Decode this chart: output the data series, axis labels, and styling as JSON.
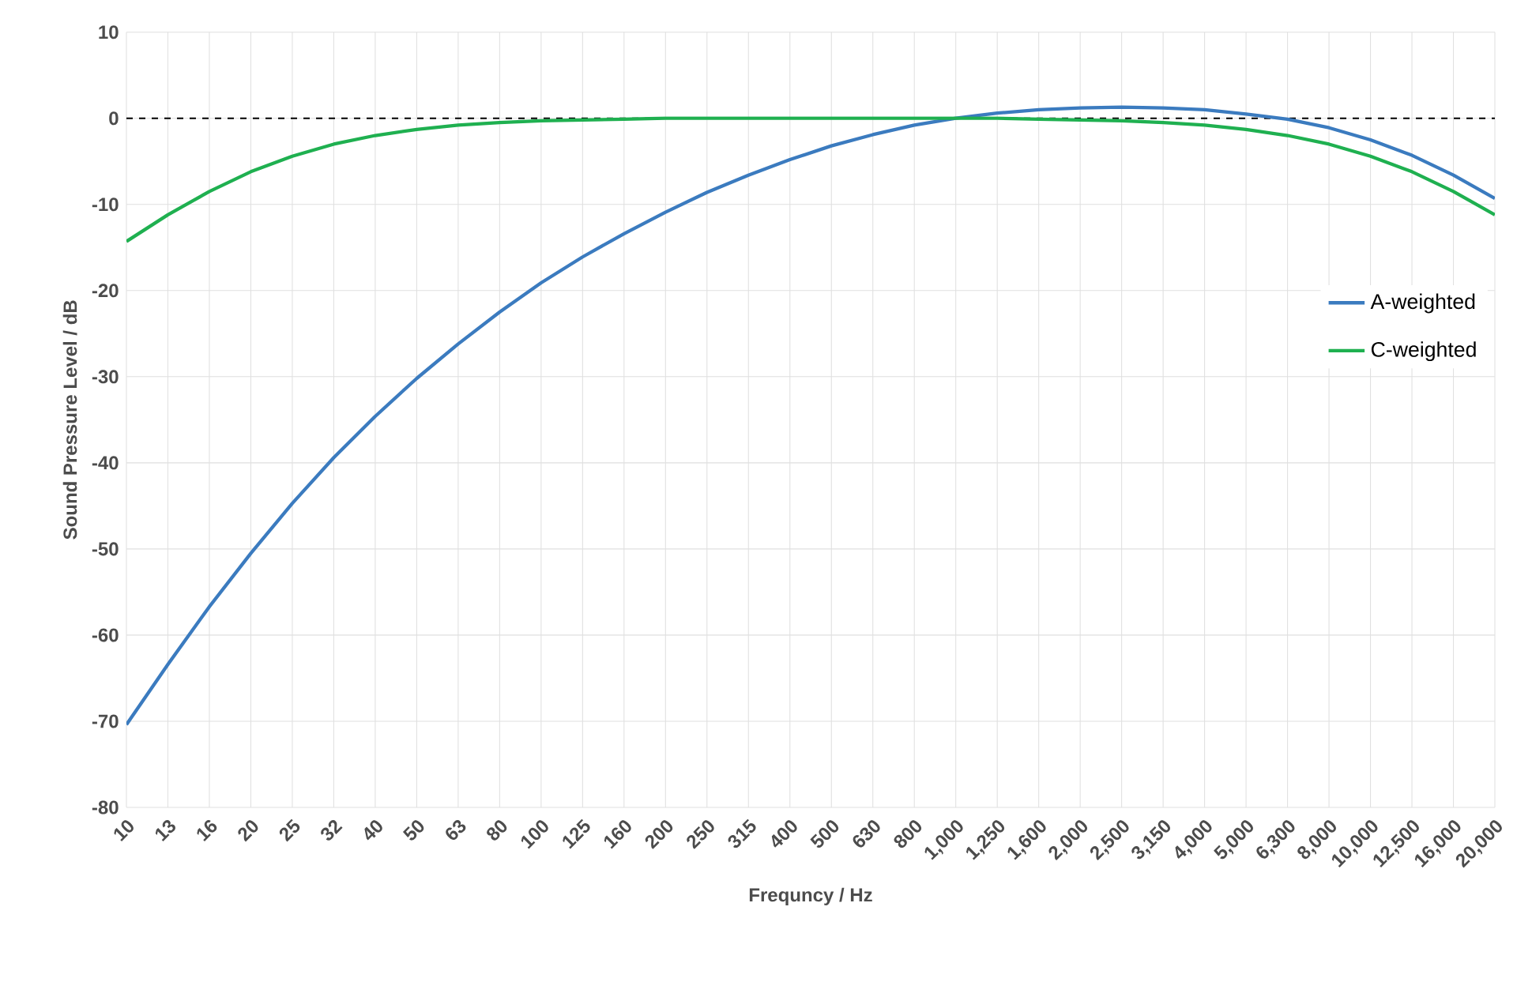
{
  "chart_data": {
    "type": "line",
    "xlabel": "Frequncy / Hz",
    "ylabel": "Sound Pressure Level / dB",
    "categories": [
      "10",
      "13",
      "16",
      "20",
      "25",
      "32",
      "40",
      "50",
      "63",
      "80",
      "100",
      "125",
      "160",
      "200",
      "250",
      "315",
      "400",
      "500",
      "630",
      "800",
      "1,000",
      "1,250",
      "1,600",
      "2,000",
      "2,500",
      "3,150",
      "4,000",
      "5,000",
      "6,300",
      "8,000",
      "10,000",
      "12,500",
      "16,000",
      "20,000"
    ],
    "series": [
      {
        "name": "A-weighted",
        "color": "#3b7bbf",
        "values": [
          -70.4,
          -63.4,
          -56.7,
          -50.5,
          -44.7,
          -39.4,
          -34.6,
          -30.2,
          -26.2,
          -22.5,
          -19.1,
          -16.1,
          -13.4,
          -10.9,
          -8.6,
          -6.6,
          -4.8,
          -3.2,
          -1.9,
          -0.8,
          0,
          0.6,
          1.0,
          1.2,
          1.3,
          1.2,
          1.0,
          0.5,
          -0.1,
          -1.1,
          -2.5,
          -4.3,
          -6.6,
          -9.3
        ]
      },
      {
        "name": "C-weighted",
        "color": "#1fb050",
        "values": [
          -14.3,
          -11.2,
          -8.5,
          -6.2,
          -4.4,
          -3.0,
          -2.0,
          -1.3,
          -0.8,
          -0.5,
          -0.3,
          -0.2,
          -0.1,
          0,
          0,
          0,
          0,
          0,
          0,
          0,
          0,
          0,
          -0.1,
          -0.2,
          -0.3,
          -0.5,
          -0.8,
          -1.3,
          -2.0,
          -3.0,
          -4.4,
          -6.2,
          -8.5,
          -11.2
        ]
      }
    ],
    "ylim": [
      -80,
      10
    ],
    "yticks": [
      -80,
      -70,
      -60,
      -50,
      -40,
      -30,
      -20,
      -10,
      0,
      10
    ],
    "grid": true,
    "legend": "right",
    "line_style": "solid",
    "marker": "none",
    "ref_lines": [
      {
        "axis": "y",
        "value": 0,
        "color": "#000000",
        "line_style": "dashed"
      }
    ]
  }
}
